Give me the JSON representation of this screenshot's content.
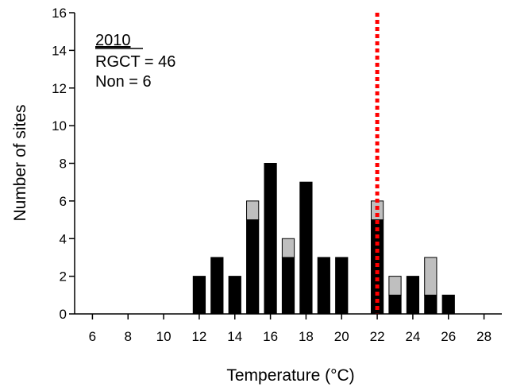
{
  "chart_data": {
    "type": "bar",
    "subtype": "stacked",
    "xlabel": "Temperature (°C)",
    "ylabel": "Number of sites",
    "xlim": [
      5,
      29
    ],
    "ylim": [
      0,
      16
    ],
    "x_ticks": [
      6,
      8,
      10,
      12,
      14,
      16,
      18,
      20,
      22,
      24,
      26,
      28
    ],
    "y_ticks": [
      0,
      2,
      4,
      6,
      8,
      10,
      12,
      14,
      16
    ],
    "categories": [
      12,
      13,
      14,
      15,
      16,
      17,
      18,
      19,
      20,
      22,
      23,
      24,
      25,
      26
    ],
    "series": [
      {
        "values": [
          2,
          3,
          2,
          5,
          8,
          3,
          7,
          3,
          3,
          5,
          1,
          2,
          1,
          1
        ],
        "color": "#000000"
      },
      {
        "values": [
          0,
          0,
          0,
          1,
          0,
          1,
          0,
          0,
          0,
          1,
          1,
          0,
          2,
          0
        ],
        "color": "#bfbfbf"
      }
    ],
    "reference_line": {
      "x": 22,
      "color": "#ff0000",
      "style": "dotted"
    },
    "annotations": {
      "year": "2010",
      "line1": "RGCT = 46",
      "line2": "Non = 6"
    },
    "grid": false
  }
}
